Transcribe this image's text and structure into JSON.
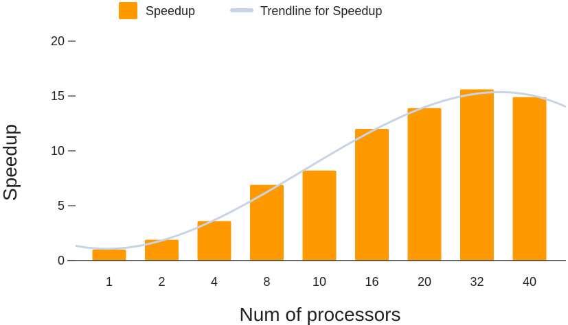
{
  "chart_data": {
    "type": "bar",
    "title": "",
    "xlabel": "Num of processors",
    "ylabel": "Speedup",
    "categories": [
      "1",
      "2",
      "4",
      "8",
      "10",
      "16",
      "20",
      "32",
      "40"
    ],
    "series": [
      {
        "name": "Speedup",
        "values": [
          1.0,
          1.9,
          3.6,
          6.9,
          8.2,
          12.0,
          13.9,
          15.6,
          14.9
        ],
        "color": "#FF9900"
      }
    ],
    "trendline": {
      "name": "Trendline for Speedup",
      "type": "polynomial",
      "color": "#C7D3E6"
    },
    "ylim": [
      0,
      20
    ],
    "yticks": [
      0,
      5,
      10,
      15,
      20
    ],
    "grid": false,
    "legend_position": "top"
  }
}
